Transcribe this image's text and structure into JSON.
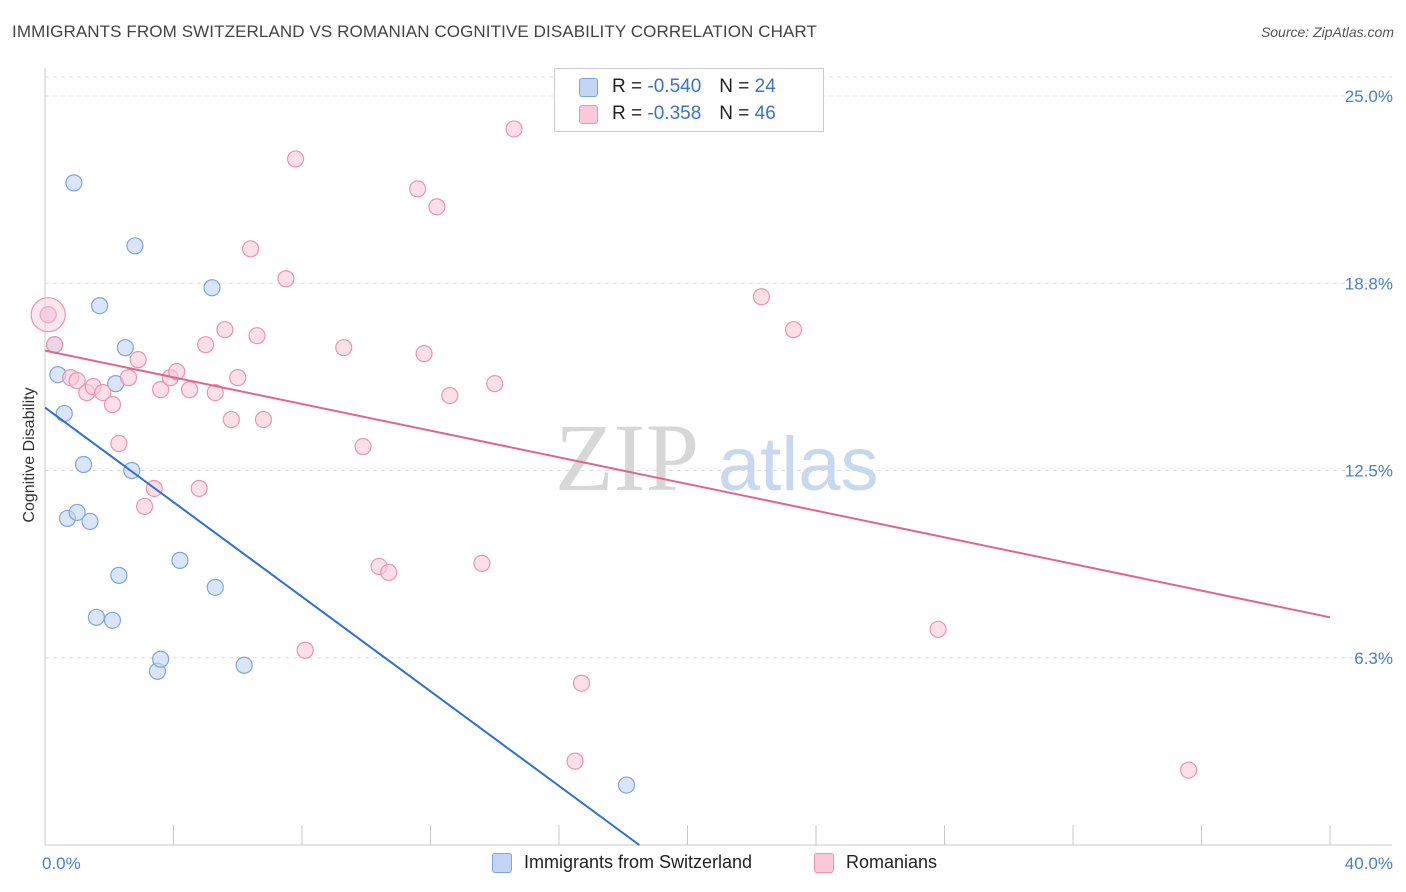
{
  "title": "IMMIGRANTS FROM SWITZERLAND VS ROMANIAN COGNITIVE DISABILITY CORRELATION CHART",
  "source": "Source: ZipAtlas.com",
  "watermark": {
    "zip": "ZIP",
    "atlas": "atlas"
  },
  "legend": {
    "r_label": "R =",
    "n_label": "N =",
    "rows": [
      {
        "r": "-0.540",
        "n": "24",
        "fill": "#c2d6f3",
        "stroke": "#7ea6e0"
      },
      {
        "r": "-0.358",
        "n": "46",
        "fill": "#fcc9d9",
        "stroke": "#ec94b3"
      }
    ]
  },
  "bottom_legend": [
    {
      "label": "Immigrants from Switzerland",
      "fill": "#c2d6f3",
      "stroke": "#7ea6e0"
    },
    {
      "label": "Romanians",
      "fill": "#fcc9d9",
      "stroke": "#ec94b3"
    }
  ],
  "chart_data": {
    "type": "scatter",
    "title": "IMMIGRANTS FROM SWITZERLAND VS ROMANIAN COGNITIVE DISABILITY CORRELATION CHART",
    "xlabel": "",
    "ylabel": "Cognitive Disability",
    "xlim": [
      0,
      40
    ],
    "ylim": [
      0,
      25
    ],
    "x_tick_labels": [
      {
        "value": 0,
        "label": "0.0%"
      },
      {
        "value": 40,
        "label": "40.0%"
      }
    ],
    "y_tick_labels": [
      {
        "value": 6.25,
        "label": "6.3%"
      },
      {
        "value": 12.5,
        "label": "12.5%"
      },
      {
        "value": 18.75,
        "label": "18.8%"
      },
      {
        "value": 25.0,
        "label": "25.0%"
      }
    ],
    "grid": true,
    "series": [
      {
        "name": "Immigrants from Switzerland",
        "color": "#7ea6e0",
        "fill": "#c2d6f3",
        "line_color": "#2f6fd6",
        "trend": {
          "x0": 0,
          "y0": 14.6,
          "x1": 18.5,
          "y1": 0
        },
        "points": [
          [
            0.1,
            17.7
          ],
          [
            0.3,
            16.7
          ],
          [
            0.4,
            15.7
          ],
          [
            0.6,
            14.4
          ],
          [
            0.7,
            10.9
          ],
          [
            0.9,
            22.1
          ],
          [
            1.0,
            11.1
          ],
          [
            1.2,
            12.7
          ],
          [
            1.4,
            10.8
          ],
          [
            1.6,
            7.6
          ],
          [
            1.7,
            18.0
          ],
          [
            2.1,
            7.5
          ],
          [
            2.2,
            15.4
          ],
          [
            2.3,
            9.0
          ],
          [
            2.5,
            16.6
          ],
          [
            2.7,
            12.5
          ],
          [
            2.8,
            20.0
          ],
          [
            3.5,
            5.8
          ],
          [
            3.6,
            6.2
          ],
          [
            4.2,
            9.5
          ],
          [
            5.2,
            18.6
          ],
          [
            5.3,
            8.6
          ],
          [
            6.2,
            6.0
          ],
          [
            18.1,
            2.0
          ]
        ]
      },
      {
        "name": "Romanians",
        "color": "#ec94b3",
        "fill": "#fcc9d9",
        "line_color": "#e0658f",
        "trend": {
          "x0": 0,
          "y0": 16.5,
          "x1": 40,
          "y1": 7.6
        },
        "points": [
          [
            0.1,
            17.7
          ],
          [
            0.3,
            16.7
          ],
          [
            0.8,
            15.6
          ],
          [
            1.0,
            15.5
          ],
          [
            1.3,
            15.1
          ],
          [
            1.5,
            15.3
          ],
          [
            1.8,
            15.1
          ],
          [
            2.1,
            14.7
          ],
          [
            2.3,
            13.4
          ],
          [
            2.6,
            15.6
          ],
          [
            2.9,
            16.2
          ],
          [
            3.1,
            11.3
          ],
          [
            3.4,
            11.9
          ],
          [
            3.6,
            15.2
          ],
          [
            3.9,
            15.6
          ],
          [
            4.1,
            15.8
          ],
          [
            4.5,
            15.2
          ],
          [
            4.8,
            11.9
          ],
          [
            5.0,
            16.7
          ],
          [
            5.3,
            15.1
          ],
          [
            5.6,
            17.2
          ],
          [
            5.8,
            14.2
          ],
          [
            6.0,
            15.6
          ],
          [
            6.4,
            19.9
          ],
          [
            6.6,
            17.0
          ],
          [
            6.8,
            14.2
          ],
          [
            7.5,
            18.9
          ],
          [
            7.8,
            22.9
          ],
          [
            8.1,
            6.5
          ],
          [
            9.3,
            16.6
          ],
          [
            9.9,
            13.3
          ],
          [
            10.4,
            9.3
          ],
          [
            10.7,
            9.1
          ],
          [
            11.6,
            21.9
          ],
          [
            11.8,
            16.4
          ],
          [
            12.2,
            21.3
          ],
          [
            12.6,
            15.0
          ],
          [
            13.6,
            9.4
          ],
          [
            14.0,
            15.4
          ],
          [
            14.6,
            23.9
          ],
          [
            16.5,
            2.8
          ],
          [
            16.7,
            5.4
          ],
          [
            22.3,
            18.3
          ],
          [
            23.3,
            17.2
          ],
          [
            27.8,
            7.2
          ],
          [
            35.6,
            2.5
          ]
        ]
      }
    ]
  }
}
